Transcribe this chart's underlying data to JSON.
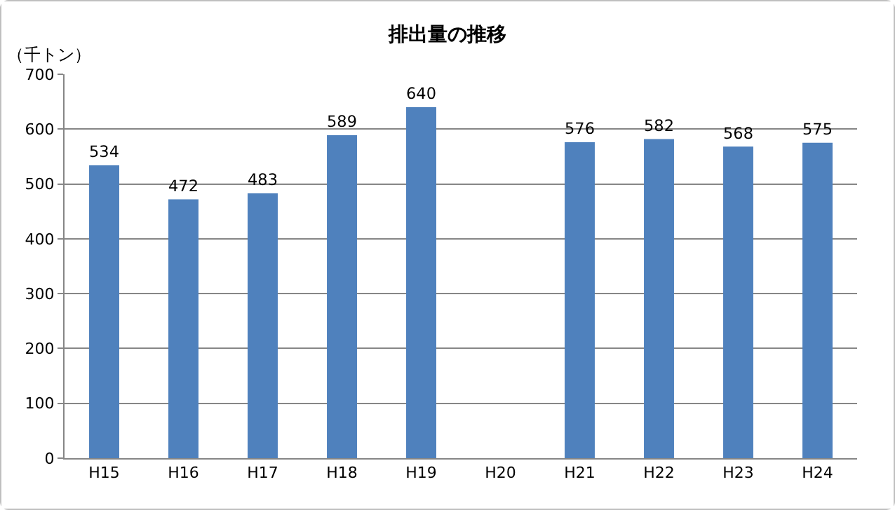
{
  "chart_data": {
    "type": "bar",
    "title": "排出量の推移",
    "ylabel": "（千トン）",
    "categories": [
      "H15",
      "H16",
      "H17",
      "H18",
      "H19",
      "H20",
      "H21",
      "H22",
      "H23",
      "H24"
    ],
    "values": [
      534,
      472,
      483,
      589,
      640,
      null,
      576,
      582,
      568,
      575
    ],
    "color": "#4f81bd",
    "ylim": [
      0,
      700
    ],
    "yticks": [
      0,
      100,
      200,
      300,
      400,
      500,
      600,
      700
    ],
    "grid": "y",
    "data_labels": true,
    "legend": false
  }
}
